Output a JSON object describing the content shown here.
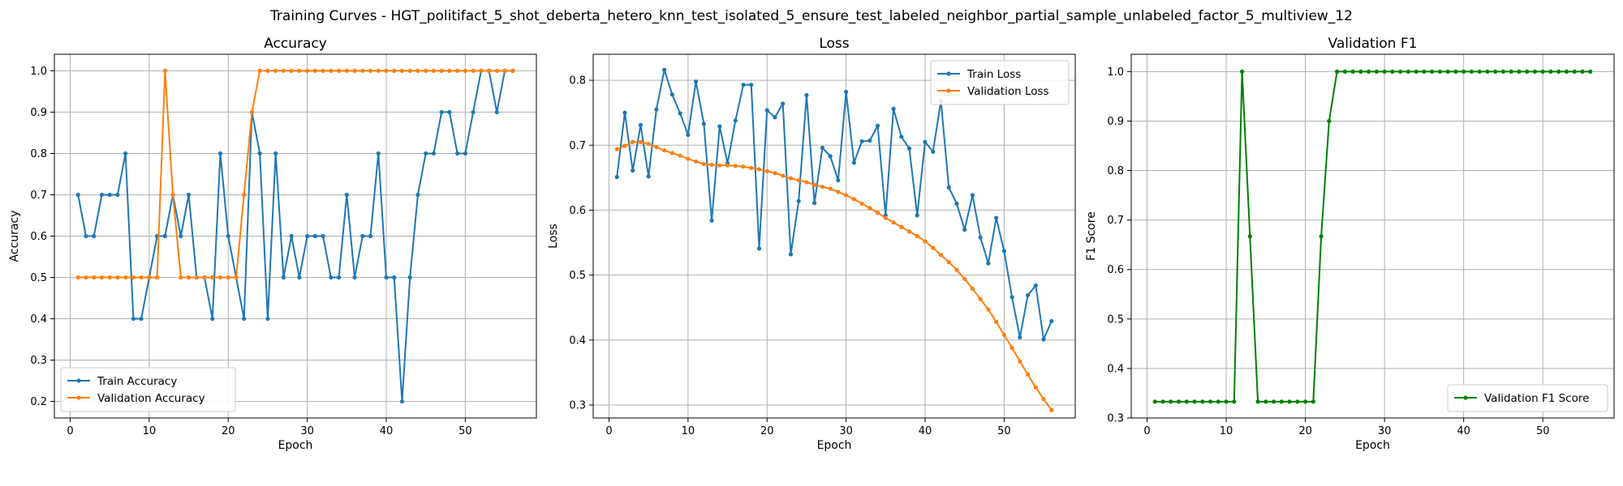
{
  "figure": {
    "title": "Training Curves - HGT_politifact_5_shot_deberta_hetero_knn_test_isolated_5_ensure_test_labeled_neighbor_partial_sample_unlabeled_factor_5_multiview_12"
  },
  "colors": {
    "blue": "#1f77b4",
    "orange": "#ff7f0e",
    "green": "#008000",
    "grid": "#b0b0b0"
  },
  "chart_data": [
    {
      "type": "line",
      "title": "Accuracy",
      "xlabel": "Epoch",
      "ylabel": "Accuracy",
      "xlim": [
        -2.0,
        59.0
      ],
      "ylim": [
        0.16,
        1.04
      ],
      "xticks": [
        0,
        10,
        20,
        30,
        40,
        50
      ],
      "yticks": [
        0.2,
        0.3,
        0.4,
        0.5,
        0.6,
        0.7,
        0.8,
        0.9,
        1.0
      ],
      "ytick_labels": [
        "0.2",
        "0.3",
        "0.4",
        "0.5",
        "0.6",
        "0.7",
        "0.8",
        "0.9",
        "1.0"
      ],
      "grid": true,
      "legend": "lower-left",
      "x": [
        1,
        2,
        3,
        4,
        5,
        6,
        7,
        8,
        9,
        10,
        11,
        12,
        13,
        14,
        15,
        16,
        17,
        18,
        19,
        20,
        21,
        22,
        23,
        24,
        25,
        26,
        27,
        28,
        29,
        30,
        31,
        32,
        33,
        34,
        35,
        36,
        37,
        38,
        39,
        40,
        41,
        42,
        43,
        44,
        45,
        46,
        47,
        48,
        49,
        50,
        51,
        52,
        53,
        54,
        55,
        56
      ],
      "series": [
        {
          "name": "Train Accuracy",
          "color": "#1f77b4",
          "values": [
            0.7,
            0.6,
            0.6,
            0.7,
            0.7,
            0.7,
            0.8,
            0.4,
            0.4,
            0.5,
            0.6,
            0.6,
            0.7,
            0.6,
            0.7,
            0.5,
            0.5,
            0.4,
            0.8,
            0.6,
            0.5,
            0.4,
            0.9,
            0.8,
            0.4,
            0.8,
            0.5,
            0.6,
            0.5,
            0.6,
            0.6,
            0.6,
            0.5,
            0.5,
            0.7,
            0.5,
            0.6,
            0.6,
            0.8,
            0.5,
            0.5,
            0.2,
            0.5,
            0.7,
            0.8,
            0.8,
            0.9,
            0.9,
            0.8,
            0.8,
            0.9,
            1.0,
            1.0,
            0.9,
            1.0,
            1.0
          ]
        },
        {
          "name": "Validation Accuracy",
          "color": "#ff7f0e",
          "values": [
            0.5,
            0.5,
            0.5,
            0.5,
            0.5,
            0.5,
            0.5,
            0.5,
            0.5,
            0.5,
            0.5,
            1.0,
            0.7,
            0.5,
            0.5,
            0.5,
            0.5,
            0.5,
            0.5,
            0.5,
            0.5,
            0.7,
            0.9,
            1.0,
            1.0,
            1.0,
            1.0,
            1.0,
            1.0,
            1.0,
            1.0,
            1.0,
            1.0,
            1.0,
            1.0,
            1.0,
            1.0,
            1.0,
            1.0,
            1.0,
            1.0,
            1.0,
            1.0,
            1.0,
            1.0,
            1.0,
            1.0,
            1.0,
            1.0,
            1.0,
            1.0,
            1.0,
            1.0,
            1.0,
            1.0,
            1.0
          ]
        }
      ]
    },
    {
      "type": "line",
      "title": "Loss",
      "xlabel": "Epoch",
      "ylabel": "Loss",
      "xlim": [
        -2.0,
        59.0
      ],
      "ylim": [
        0.28,
        0.84
      ],
      "xticks": [
        0,
        10,
        20,
        30,
        40,
        50
      ],
      "yticks": [
        0.3,
        0.4,
        0.5,
        0.6,
        0.7,
        0.8
      ],
      "ytick_labels": [
        "0.3",
        "0.4",
        "0.5",
        "0.6",
        "0.7",
        "0.8"
      ],
      "grid": true,
      "legend": "upper-right",
      "x": [
        1,
        2,
        3,
        4,
        5,
        6,
        7,
        8,
        9,
        10,
        11,
        12,
        13,
        14,
        15,
        16,
        17,
        18,
        19,
        20,
        21,
        22,
        23,
        24,
        25,
        26,
        27,
        28,
        29,
        30,
        31,
        32,
        33,
        34,
        35,
        36,
        37,
        38,
        39,
        40,
        41,
        42,
        43,
        44,
        45,
        46,
        47,
        48,
        49,
        50,
        51,
        52,
        53,
        54,
        55,
        56
      ],
      "series": [
        {
          "name": "Train Loss",
          "color": "#1f77b4",
          "values": [
            0.651,
            0.75,
            0.661,
            0.731,
            0.652,
            0.755,
            0.816,
            0.778,
            0.749,
            0.716,
            0.798,
            0.733,
            0.584,
            0.729,
            0.672,
            0.738,
            0.793,
            0.793,
            0.541,
            0.754,
            0.743,
            0.764,
            0.532,
            0.614,
            0.777,
            0.611,
            0.696,
            0.683,
            0.646,
            0.782,
            0.673,
            0.706,
            0.707,
            0.73,
            0.592,
            0.756,
            0.713,
            0.695,
            0.592,
            0.705,
            0.69,
            0.768,
            0.635,
            0.61,
            0.57,
            0.623,
            0.558,
            0.518,
            0.588,
            0.537,
            0.466,
            0.404,
            0.469,
            0.484,
            0.401,
            0.429
          ]
        },
        {
          "name": "Validation Loss",
          "color": "#ff7f0e",
          "values": [
            0.694,
            0.699,
            0.705,
            0.705,
            0.702,
            0.697,
            0.692,
            0.688,
            0.684,
            0.679,
            0.675,
            0.671,
            0.67,
            0.669,
            0.669,
            0.668,
            0.667,
            0.665,
            0.663,
            0.66,
            0.657,
            0.653,
            0.649,
            0.646,
            0.643,
            0.639,
            0.636,
            0.633,
            0.628,
            0.623,
            0.617,
            0.61,
            0.603,
            0.596,
            0.588,
            0.581,
            0.574,
            0.567,
            0.56,
            0.552,
            0.542,
            0.531,
            0.52,
            0.508,
            0.494,
            0.479,
            0.463,
            0.447,
            0.428,
            0.408,
            0.388,
            0.367,
            0.347,
            0.327,
            0.309,
            0.292
          ]
        }
      ]
    },
    {
      "type": "line",
      "title": "Validation F1",
      "xlabel": "Epoch",
      "ylabel": "F1 Score",
      "xlim": [
        -2.0,
        59.0
      ],
      "ylim": [
        0.3,
        1.035
      ],
      "xticks": [
        0,
        10,
        20,
        30,
        40,
        50
      ],
      "yticks": [
        0.3,
        0.4,
        0.5,
        0.6,
        0.7,
        0.8,
        0.9,
        1.0
      ],
      "ytick_labels": [
        "0.3",
        "0.4",
        "0.5",
        "0.6",
        "0.7",
        "0.8",
        "0.9",
        "1.0"
      ],
      "grid": true,
      "legend": "lower-right",
      "x": [
        1,
        2,
        3,
        4,
        5,
        6,
        7,
        8,
        9,
        10,
        11,
        12,
        13,
        14,
        15,
        16,
        17,
        18,
        19,
        20,
        21,
        22,
        23,
        24,
        25,
        26,
        27,
        28,
        29,
        30,
        31,
        32,
        33,
        34,
        35,
        36,
        37,
        38,
        39,
        40,
        41,
        42,
        43,
        44,
        45,
        46,
        47,
        48,
        49,
        50,
        51,
        52,
        53,
        54,
        55,
        56
      ],
      "series": [
        {
          "name": "Validation F1 Score",
          "color": "#008000",
          "values": [
            0.333,
            0.333,
            0.333,
            0.333,
            0.333,
            0.333,
            0.333,
            0.333,
            0.333,
            0.333,
            0.333,
            1.0,
            0.667,
            0.333,
            0.333,
            0.333,
            0.333,
            0.333,
            0.333,
            0.333,
            0.333,
            0.667,
            0.9,
            1.0,
            1.0,
            1.0,
            1.0,
            1.0,
            1.0,
            1.0,
            1.0,
            1.0,
            1.0,
            1.0,
            1.0,
            1.0,
            1.0,
            1.0,
            1.0,
            1.0,
            1.0,
            1.0,
            1.0,
            1.0,
            1.0,
            1.0,
            1.0,
            1.0,
            1.0,
            1.0,
            1.0,
            1.0,
            1.0,
            1.0,
            1.0,
            1.0
          ]
        }
      ]
    }
  ]
}
